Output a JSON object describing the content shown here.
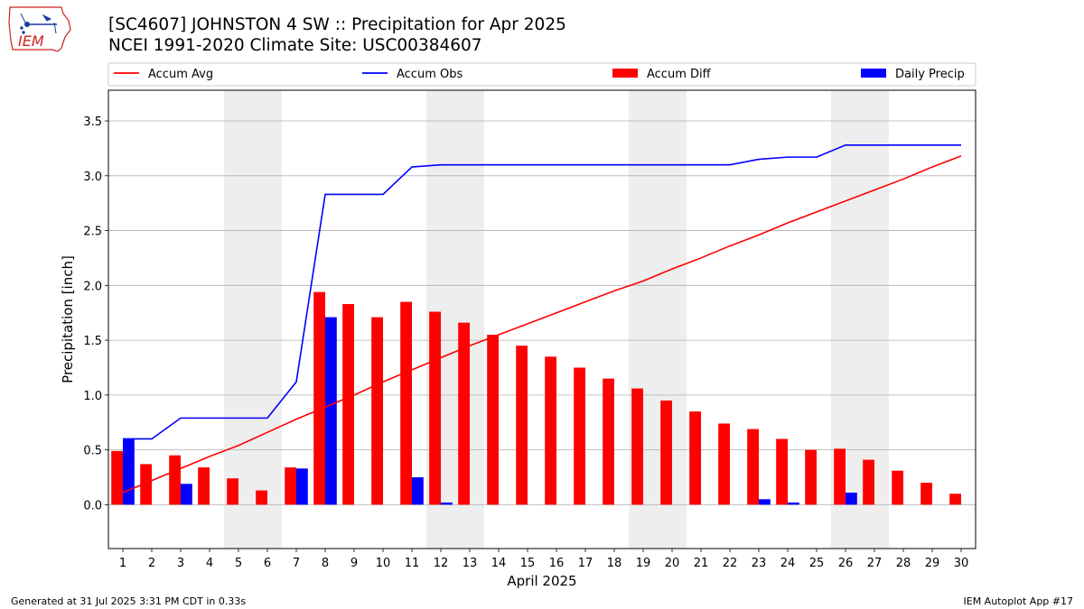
{
  "titles": {
    "line1": "[SC4607] JOHNSTON 4 SW :: Precipitation for Apr 2025",
    "line2": "NCEI 1991-2020 Climate Site: USC00384607"
  },
  "logo": {
    "text": "IEM",
    "icon": "iem-iowa-logo"
  },
  "footer": {
    "left": "Generated at 31 Jul 2025 3:31 PM CDT in 0.33s",
    "right": "IEM Autoplot App #17"
  },
  "colors": {
    "avg": "#ff0000",
    "obs": "#0000ff",
    "diff": "#ff0000",
    "daily": "#0000ff",
    "weekend": "#eeeeee",
    "grid": "#b0b0b0"
  },
  "chart_data": {
    "type": "bar",
    "xlabel": "April 2025",
    "ylabel": "Precipitation [inch]",
    "x": [
      1,
      2,
      3,
      4,
      5,
      6,
      7,
      8,
      9,
      10,
      11,
      12,
      13,
      14,
      15,
      16,
      17,
      18,
      19,
      20,
      21,
      22,
      23,
      24,
      25,
      26,
      27,
      28,
      29,
      30
    ],
    "xlim": [
      0.5,
      30.5
    ],
    "ylim": [
      -0.4,
      3.78
    ],
    "yticks": [
      "0.0",
      "0.5",
      "1.0",
      "1.5",
      "2.0",
      "2.5",
      "3.0",
      "3.5"
    ],
    "grid": "horizontal",
    "legend_position": "top",
    "shaded_weekends": [
      [
        5,
        6
      ],
      [
        12,
        13
      ],
      [
        19,
        20
      ],
      [
        26,
        27
      ]
    ],
    "series": [
      {
        "name": "Accum Avg",
        "kind": "line",
        "values": [
          0.11,
          0.22,
          0.33,
          0.44,
          0.54,
          0.66,
          0.78,
          0.89,
          1.0,
          1.12,
          1.23,
          1.34,
          1.45,
          1.55,
          1.65,
          1.75,
          1.85,
          1.95,
          2.04,
          2.15,
          2.25,
          2.36,
          2.46,
          2.57,
          2.67,
          2.77,
          2.87,
          2.97,
          3.08,
          3.18
        ]
      },
      {
        "name": "Accum Obs",
        "kind": "line",
        "values": [
          0.6,
          0.6,
          0.79,
          0.79,
          0.79,
          0.79,
          1.12,
          2.83,
          2.83,
          2.83,
          3.08,
          3.1,
          3.1,
          3.1,
          3.1,
          3.1,
          3.1,
          3.1,
          3.1,
          3.1,
          3.1,
          3.1,
          3.15,
          3.17,
          3.17,
          3.28,
          3.28,
          3.28,
          3.28,
          3.28
        ]
      },
      {
        "name": "Accum Diff",
        "kind": "bar",
        "values": [
          0.49,
          0.37,
          0.45,
          0.34,
          0.24,
          0.13,
          0.34,
          1.94,
          1.83,
          1.71,
          1.85,
          1.76,
          1.66,
          1.55,
          1.45,
          1.35,
          1.25,
          1.15,
          1.06,
          0.95,
          0.85,
          0.74,
          0.69,
          0.6,
          0.5,
          0.51,
          0.41,
          0.31,
          0.2,
          0.1
        ]
      },
      {
        "name": "Daily Precip",
        "kind": "bar",
        "values": [
          0.6,
          0.0,
          0.19,
          0.0,
          0.0,
          0.0,
          0.33,
          1.71,
          0.0,
          0.0,
          0.25,
          0.02,
          0.0,
          0.0,
          0.0,
          0.0,
          0.0,
          0.0,
          0.0,
          0.0,
          0.0,
          0.0,
          0.05,
          0.02,
          0.0,
          0.11,
          0.0,
          0.0,
          0.0,
          0.0
        ]
      }
    ]
  }
}
